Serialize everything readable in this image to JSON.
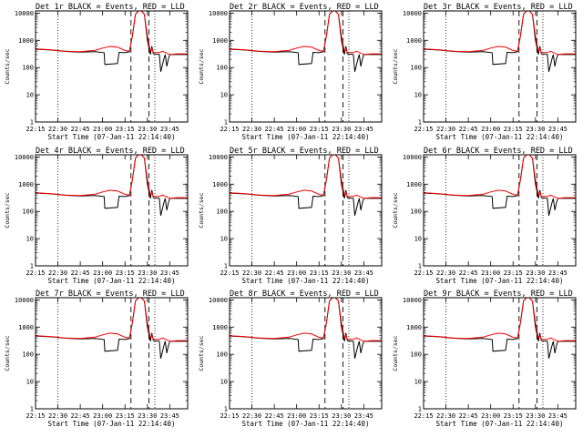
{
  "chart_data": {
    "type": "line",
    "layout": "3x3 grid",
    "shared": {
      "xlabel": "Start Time (07-Jan-11 22:14:40)",
      "ylabel": "Counts/sec",
      "x_ticks": [
        "22:15",
        "22:30",
        "22:45",
        "23:00",
        "23:15",
        "23:30",
        "23:45"
      ],
      "x_tick_minutes": [
        15,
        30,
        45,
        60,
        75,
        90,
        105
      ],
      "xlim_minutes": [
        15,
        117
      ],
      "y_scale": "log",
      "ylim": [
        1,
        12000
      ],
      "y_ticks": [
        "1",
        "10",
        "100",
        "1000",
        "10000"
      ],
      "y_tick_values": [
        1,
        10,
        100,
        1000,
        10000
      ],
      "dotted_lines_minutes": [
        30,
        95
      ],
      "dashed_lines_minutes": [
        79,
        91
      ],
      "grid": false,
      "series_colors": {
        "Events": "#000000",
        "LLD": "#ff0000"
      }
    },
    "panels": [
      {
        "title": "Det 1r BLACK = Events, RED = LLD"
      },
      {
        "title": "Det 2r BLACK = Events, RED = LLD"
      },
      {
        "title": "Det 3r BLACK = Events, RED = LLD"
      },
      {
        "title": "Det 4r BLACK = Events, RED = LLD"
      },
      {
        "title": "Det 5r BLACK = Events, RED = LLD"
      },
      {
        "title": "Det 6r BLACK = Events, RED = LLD"
      },
      {
        "title": "Det 7r BLACK = Events, RED = LLD"
      },
      {
        "title": "Det 8r BLACK = Events, RED = LLD"
      },
      {
        "title": "Det 9r BLACK = Events, RED = LLD"
      }
    ],
    "series": [
      {
        "name": "Events",
        "x_minutes": [
          15,
          25,
          35,
          45,
          55,
          61,
          61.5,
          70,
          71,
          75,
          78,
          80,
          82,
          84,
          86,
          88,
          90,
          92,
          93,
          94,
          98,
          99,
          101,
          102,
          103,
          104,
          105,
          110,
          117
        ],
        "values": [
          470,
          440,
          390,
          370,
          380,
          350,
          130,
          140,
          360,
          350,
          380,
          1500,
          9000,
          12000,
          12000,
          9000,
          1000,
          300,
          600,
          320,
          300,
          70,
          200,
          300,
          110,
          200,
          300,
          300,
          300
        ]
      },
      {
        "name": "LLD",
        "x_minutes": [
          15,
          25,
          35,
          45,
          55,
          60,
          65,
          70,
          75,
          78,
          80,
          82,
          84,
          86,
          88,
          90,
          92,
          93,
          94,
          98,
          100,
          105,
          110,
          117
        ],
        "values": [
          480,
          450,
          400,
          380,
          430,
          520,
          600,
          560,
          420,
          400,
          1500,
          9000,
          12000,
          12000,
          9000,
          1500,
          400,
          500,
          360,
          350,
          400,
          300,
          320,
          320
        ]
      }
    ]
  }
}
